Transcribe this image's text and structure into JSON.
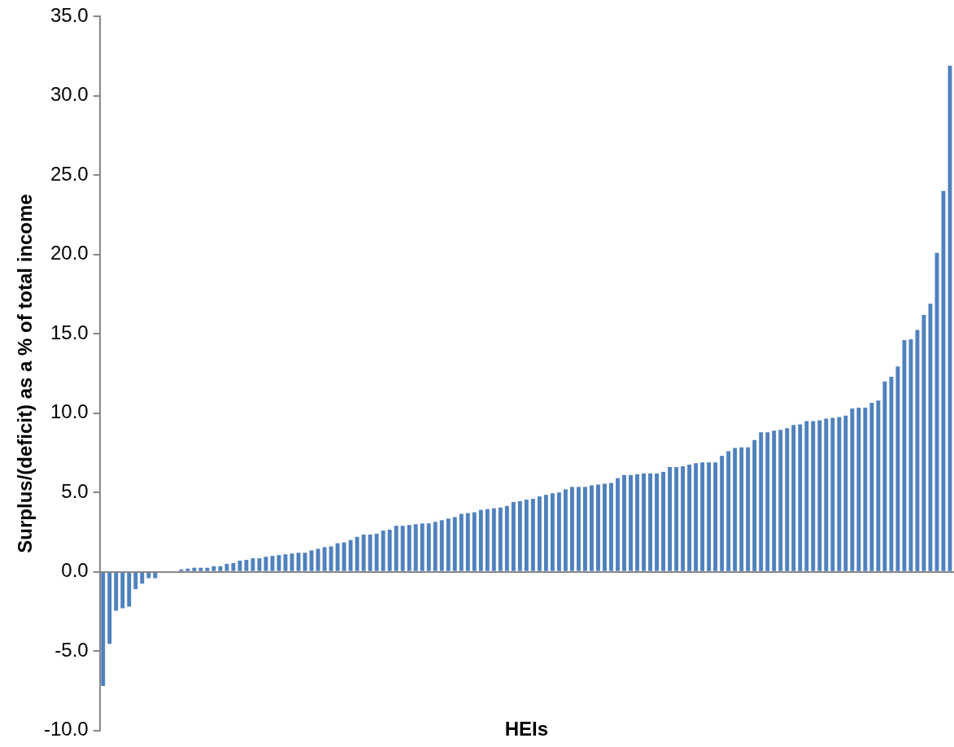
{
  "chart_data": {
    "type": "bar",
    "xlabel": "HEIs",
    "ylabel": "Surplus/(deficit) as a % of total income",
    "categories": [
      null,
      null,
      null,
      null,
      null,
      null,
      null,
      null,
      null,
      null,
      null,
      null,
      null,
      null,
      null,
      null,
      null,
      null,
      null,
      null,
      null,
      null,
      null,
      null,
      null,
      null,
      null,
      null,
      null,
      null,
      null,
      null,
      null,
      null,
      null,
      null,
      null,
      null,
      null,
      null,
      null,
      null,
      null,
      null,
      null,
      null,
      null,
      null,
      null,
      null,
      null,
      null,
      null,
      null,
      null,
      null,
      null,
      null,
      null,
      null,
      null,
      null,
      null,
      null,
      null,
      null,
      null,
      null,
      null,
      null,
      null,
      null,
      null,
      null,
      null,
      null,
      null,
      null,
      null,
      null,
      null,
      null,
      null,
      null,
      null,
      null,
      null,
      null,
      null,
      null,
      null,
      null,
      null,
      null,
      null,
      null,
      null,
      null,
      null,
      null,
      null,
      null,
      null,
      null,
      null,
      null,
      null,
      null,
      null,
      null,
      null,
      null,
      null,
      null,
      null,
      null,
      null,
      null,
      null,
      null,
      null,
      null,
      null,
      null,
      null,
      null,
      null,
      null,
      null,
      null,
      null
    ],
    "values": [
      -7.2,
      -4.55,
      -2.45,
      -2.3,
      -2.2,
      -1.1,
      -0.75,
      -0.4,
      -0.4,
      0,
      0,
      0,
      0.15,
      0.2,
      0.25,
      0.25,
      0.25,
      0.35,
      0.35,
      0.5,
      0.55,
      0.7,
      0.75,
      0.85,
      0.85,
      0.95,
      1.0,
      1.05,
      1.1,
      1.15,
      1.2,
      1.2,
      1.35,
      1.45,
      1.55,
      1.6,
      1.8,
      1.85,
      2.0,
      2.2,
      2.35,
      2.35,
      2.4,
      2.6,
      2.65,
      2.9,
      2.9,
      2.95,
      3.0,
      3.05,
      3.05,
      3.15,
      3.25,
      3.35,
      3.45,
      3.65,
      3.7,
      3.75,
      3.9,
      3.95,
      4.0,
      4.05,
      4.15,
      4.4,
      4.45,
      4.55,
      4.6,
      4.75,
      4.85,
      4.95,
      5.0,
      5.2,
      5.35,
      5.35,
      5.35,
      5.45,
      5.5,
      5.55,
      5.6,
      5.9,
      6.1,
      6.1,
      6.15,
      6.2,
      6.2,
      6.2,
      6.3,
      6.6,
      6.6,
      6.65,
      6.75,
      6.85,
      6.9,
      6.9,
      6.9,
      7.3,
      7.6,
      7.8,
      7.85,
      7.85,
      8.3,
      8.8,
      8.8,
      8.9,
      8.95,
      9.05,
      9.25,
      9.3,
      9.5,
      9.5,
      9.55,
      9.65,
      9.7,
      9.75,
      9.85,
      10.3,
      10.35,
      10.35,
      10.65,
      10.8,
      12.0,
      12.3,
      12.95,
      14.6,
      14.65,
      15.25,
      16.2,
      16.9,
      20.1,
      24.0,
      31.9
    ],
    "color": "#4f81bd",
    "ylim": [
      -10,
      35
    ],
    "yticks": [
      {
        "value": -10,
        "label": "-10.0"
      },
      {
        "value": -5,
        "label": "-5.0"
      },
      {
        "value": 0,
        "label": "0.0"
      },
      {
        "value": 5,
        "label": "5.0"
      },
      {
        "value": 10,
        "label": "10.0"
      },
      {
        "value": 15,
        "label": "15.0"
      },
      {
        "value": 20,
        "label": "20.0"
      },
      {
        "value": 25,
        "label": "25.0"
      },
      {
        "value": 30,
        "label": "30.0"
      },
      {
        "value": 35,
        "label": "35.0"
      }
    ],
    "tick_labels": "y"
  }
}
